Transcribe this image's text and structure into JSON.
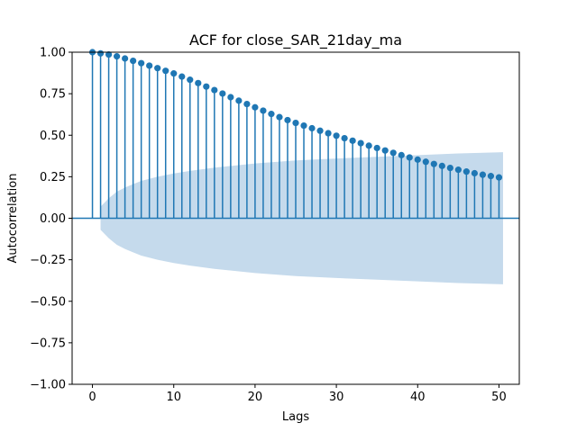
{
  "chart_data": {
    "type": "stem",
    "title": "ACF for close_SAR_21day_ma",
    "xlabel": "Lags",
    "ylabel": "Autocorrelation",
    "xlim": [
      -2.5,
      52.5
    ],
    "ylim": [
      -1.0,
      1.0
    ],
    "xticks": [
      0,
      10,
      20,
      30,
      40,
      50
    ],
    "xtick_labels": [
      "0",
      "10",
      "20",
      "30",
      "40",
      "50"
    ],
    "yticks": [
      -1.0,
      -0.75,
      -0.5,
      -0.25,
      0.0,
      0.25,
      0.5,
      0.75,
      1.0
    ],
    "ytick_labels": [
      "−1.00",
      "−0.75",
      "−0.50",
      "−0.25",
      "0.00",
      "0.25",
      "0.50",
      "0.75",
      "1.00"
    ],
    "grid": false,
    "series": [
      {
        "lags": [
          0,
          1,
          2,
          3,
          4,
          5,
          6,
          7,
          8,
          9,
          10,
          11,
          12,
          13,
          14,
          15,
          16,
          17,
          18,
          19,
          20,
          21,
          22,
          23,
          24,
          25,
          26,
          27,
          28,
          29,
          30,
          31,
          32,
          33,
          34,
          35,
          36,
          37,
          38,
          39,
          40,
          41,
          42,
          43,
          44,
          45,
          46,
          47,
          48,
          49,
          50
        ],
        "values": [
          1.0,
          0.993,
          0.986,
          0.975,
          0.962,
          0.948,
          0.934,
          0.919,
          0.904,
          0.888,
          0.872,
          0.853,
          0.834,
          0.814,
          0.793,
          0.772,
          0.751,
          0.729,
          0.708,
          0.688,
          0.668,
          0.648,
          0.628,
          0.609,
          0.591,
          0.574,
          0.558,
          0.542,
          0.527,
          0.512,
          0.497,
          0.482,
          0.467,
          0.452,
          0.437,
          0.423,
          0.408,
          0.394,
          0.38,
          0.366,
          0.353,
          0.34,
          0.327,
          0.315,
          0.303,
          0.292,
          0.281,
          0.271,
          0.262,
          0.254,
          0.246
        ]
      }
    ],
    "confidence_band": {
      "lags": [
        1,
        2,
        3,
        4,
        5,
        6,
        8,
        10,
        12,
        15,
        20,
        25,
        30,
        35,
        40,
        45,
        50.5
      ],
      "upper": [
        0.07,
        0.12,
        0.16,
        0.185,
        0.205,
        0.225,
        0.25,
        0.27,
        0.285,
        0.305,
        0.33,
        0.348,
        0.36,
        0.37,
        0.38,
        0.39,
        0.398
      ]
    },
    "colors": {
      "stem": "#1f77b4",
      "band": "#c5daec",
      "zero_line": "#1f77b4",
      "axes": "#000000"
    }
  }
}
